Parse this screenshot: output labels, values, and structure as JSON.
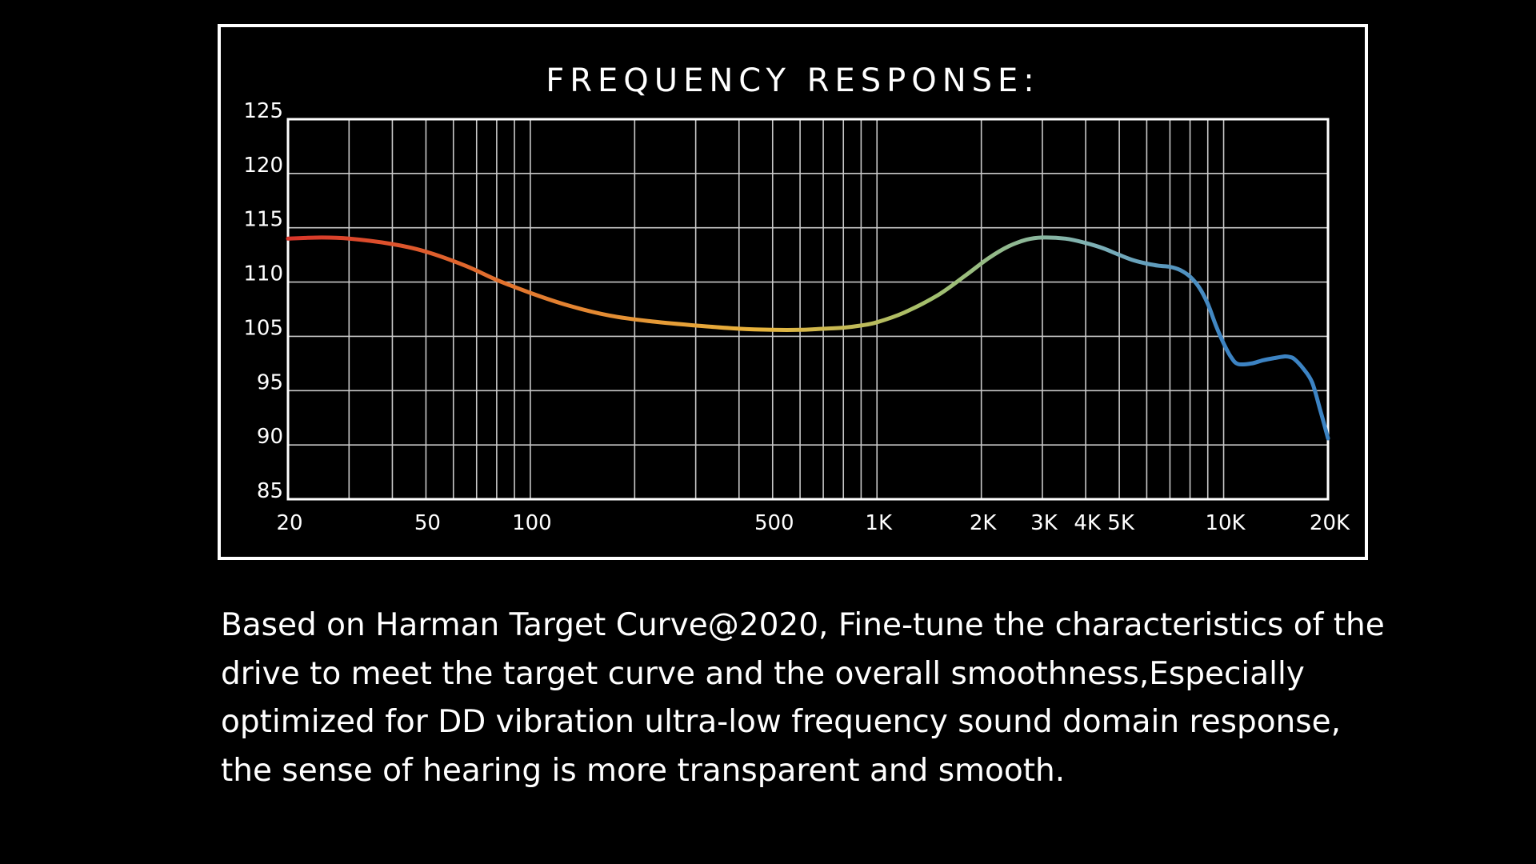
{
  "description": "Based on Harman Target Curve@2020, Fine-tune the characteristics of the drive to meet the target curve and the overall smoothness,Especially optimized for DD vibration ultra-low frequency sound domain response, the sense of hearing is more transparent and smooth.",
  "chart_data": {
    "type": "line",
    "title": "FREQUENCY RESPONSE:",
    "xlabel": "",
    "ylabel": "",
    "x_scale": "log",
    "xlim": [
      20,
      20000
    ],
    "x_ticks": [
      {
        "value": 20,
        "label": "20"
      },
      {
        "value": 50,
        "label": "50"
      },
      {
        "value": 100,
        "label": "100"
      },
      {
        "value": 500,
        "label": "500"
      },
      {
        "value": 1000,
        "label": "1K"
      },
      {
        "value": 2000,
        "label": "2K"
      },
      {
        "value": 3000,
        "label": "3K"
      },
      {
        "value": 4000,
        "label": "4K"
      },
      {
        "value": 5000,
        "label": "5K"
      },
      {
        "value": 10000,
        "label": "10K"
      },
      {
        "value": 20000,
        "label": "20K"
      }
    ],
    "y_ticks": [
      "125",
      "120",
      "115",
      "110",
      "105",
      "95",
      "90",
      "85"
    ],
    "grid": true,
    "gradient_colors": [
      "#d9352a",
      "#e2762e",
      "#e8b33c",
      "#a2c06e",
      "#7cb0b8",
      "#3c83c3"
    ],
    "series": [
      {
        "x": [
          20,
          25,
          30,
          40,
          50,
          65,
          80,
          100,
          130,
          170,
          220,
          300,
          400,
          500,
          600,
          700,
          800,
          900,
          1000,
          1200,
          1500,
          1800,
          2100,
          2400,
          2700,
          3000,
          3500,
          4000,
          4500,
          5000,
          5500,
          6000,
          6500,
          7000,
          7500,
          8000,
          8500,
          9000,
          9500,
          10000,
          10500,
          11000,
          12000,
          13000,
          14000,
          15000,
          15500,
          16000,
          17000,
          18000,
          19000,
          20000
        ],
        "y": [
          114,
          114.1,
          114,
          113.5,
          112.8,
          111.5,
          110.2,
          109,
          107.8,
          106.9,
          106.4,
          106,
          105.7,
          105.6,
          105.6,
          105.7,
          105.8,
          106,
          106.3,
          107.2,
          108.8,
          110.6,
          112.2,
          113.3,
          113.9,
          114.1,
          114,
          113.6,
          113.1,
          112.5,
          112,
          111.7,
          111.5,
          111.4,
          111.1,
          110.5,
          109.5,
          108,
          106,
          103.7,
          101.2,
          99.9,
          100,
          100.6,
          101,
          101.3,
          101.2,
          100.8,
          99,
          96.5,
          93.2,
          90.6
        ]
      }
    ]
  }
}
